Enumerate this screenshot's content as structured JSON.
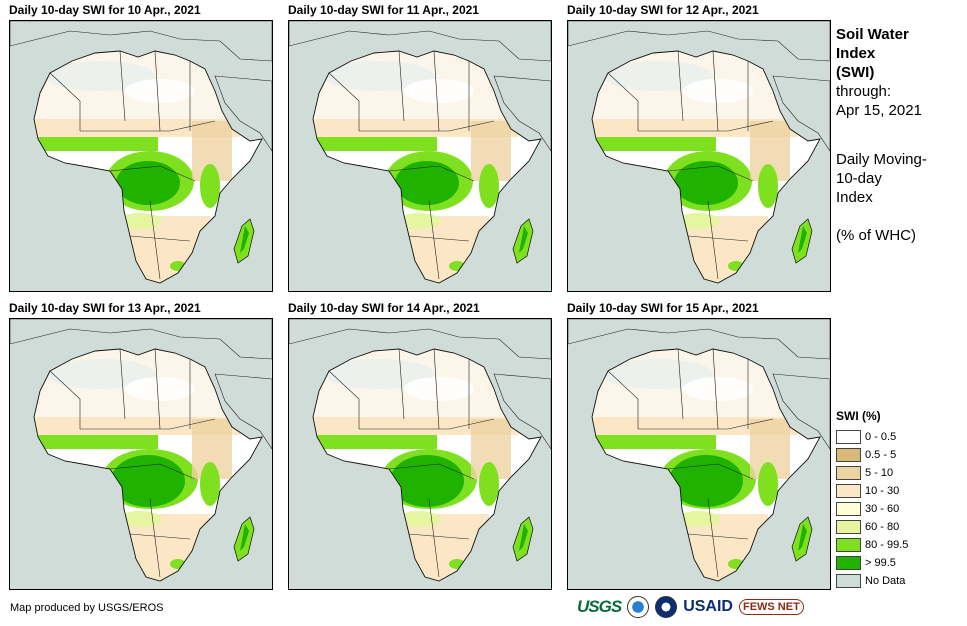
{
  "panels": [
    {
      "title": "Daily 10-day  SWI for 10 Apr., 2021"
    },
    {
      "title": "Daily 10-day  SWI for 11 Apr., 2021"
    },
    {
      "title": "Daily 10-day  SWI for 12 Apr., 2021"
    },
    {
      "title": "Daily 10-day  SWI for 13 Apr., 2021"
    },
    {
      "title": "Daily 10-day  SWI for 14 Apr., 2021"
    },
    {
      "title": "Daily 10-day  SWI for 15 Apr., 2021"
    }
  ],
  "side": {
    "title1": "Soil Water",
    "title2": "Index",
    "title3": "(SWI)",
    "through": "through:",
    "date": "Apr 15, 2021",
    "desc1": "Daily Moving-",
    "desc2": "10-day",
    "desc3": "Index",
    "units": "(% of WHC)"
  },
  "legend": {
    "title": "SWI (%)",
    "items": [
      {
        "label": "0 - 0.5",
        "color": "#ffffff"
      },
      {
        "label": "0.5 - 5",
        "color": "#d8b97a"
      },
      {
        "label": "5 - 10",
        "color": "#eed3a2"
      },
      {
        "label": "10 - 30",
        "color": "#fbe7c5"
      },
      {
        "label": "30 - 60",
        "color": "#fffdd5"
      },
      {
        "label": "60 - 80",
        "color": "#e6f5a0"
      },
      {
        "label": "80 - 99.5",
        "color": "#7ee01e"
      },
      {
        "label": "> 99.5",
        "color": "#1fb300"
      },
      {
        "label": "No Data",
        "color": "#cfdcd8"
      }
    ]
  },
  "credit": "Map produced by USGS/EROS",
  "logos": {
    "usgs": "USGS",
    "usaid": "USAID",
    "fews": "FEWS NET"
  }
}
